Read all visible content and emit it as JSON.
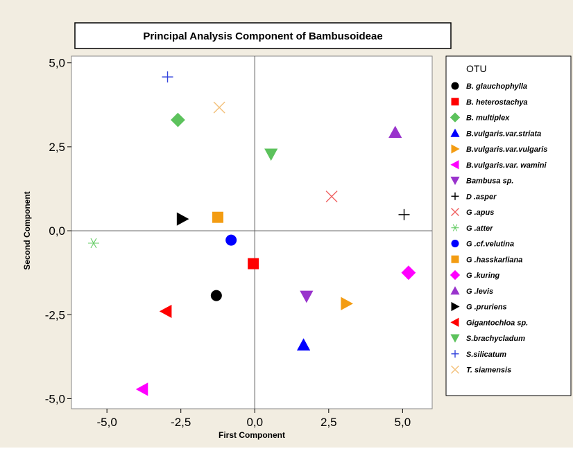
{
  "chart_data": {
    "type": "scatter",
    "title": "Principal Analysis Component of Bambusoideae",
    "xlabel": "First Component",
    "ylabel": "Second Component",
    "xlim": [
      -6.2,
      6.0
    ],
    "ylim": [
      -5.3,
      5.2
    ],
    "xticks": [
      -5.0,
      -2.5,
      0.0,
      2.5,
      5.0
    ],
    "yticks": [
      -5.0,
      -2.5,
      0.0,
      2.5,
      5.0
    ],
    "xtick_labels": [
      "-5,0",
      "-2,5",
      "0,0",
      "2,5",
      "5,0"
    ],
    "ytick_labels": [
      "-5,0",
      "-2,5",
      "0,0",
      "2,5",
      "5,0"
    ],
    "reference_lines": {
      "x": 0,
      "y": 0
    },
    "legend_title": "OTU",
    "legend_position": "right",
    "series": [
      {
        "name": "B. glauchophylla",
        "marker": "circle",
        "color": "#000000",
        "x": -1.3,
        "y": -1.93
      },
      {
        "name": "B. heterostachya",
        "marker": "square",
        "color": "#ff0000",
        "x": -0.05,
        "y": -0.98
      },
      {
        "name": "B. multiplex",
        "marker": "diamond",
        "color": "#5cc25c",
        "x": -2.6,
        "y": 3.3
      },
      {
        "name": "B.vulgaris.var.striata",
        "marker": "triangle-up",
        "color": "#0000ff",
        "x": 1.65,
        "y": -3.4
      },
      {
        "name": "B.vulgaris.var.vulgaris",
        "marker": "triangle-right",
        "color": "#f39c12",
        "x": 3.1,
        "y": -2.17
      },
      {
        "name": "B.vulgaris.var. wamini",
        "marker": "triangle-left",
        "color": "#ff00ff",
        "x": -3.8,
        "y": -4.72
      },
      {
        "name": "Bambusa sp.",
        "marker": "triangle-down",
        "color": "#9933cc",
        "x": 1.75,
        "y": -1.95
      },
      {
        "name": "D .asper",
        "marker": "plus",
        "color": "#000000",
        "x": 5.05,
        "y": 0.48
      },
      {
        "name": "G .apus",
        "marker": "x",
        "color": "#f06060",
        "x": 2.6,
        "y": 1.02
      },
      {
        "name": "G .atter",
        "marker": "asterisk",
        "color": "#66cc66",
        "x": -5.45,
        "y": -0.37
      },
      {
        "name": "G .cf.velutina",
        "marker": "circle",
        "color": "#0000ff",
        "x": -0.8,
        "y": -0.28
      },
      {
        "name": "G .hasskarliana",
        "marker": "square",
        "color": "#f39c12",
        "x": -1.25,
        "y": 0.4
      },
      {
        "name": "G .kuring",
        "marker": "diamond",
        "color": "#ff00ff",
        "x": 5.2,
        "y": -1.25
      },
      {
        "name": "G .levis",
        "marker": "triangle-up",
        "color": "#9933cc",
        "x": 4.75,
        "y": 2.93
      },
      {
        "name": "G .pruriens",
        "marker": "triangle-right",
        "color": "#000000",
        "x": -2.45,
        "y": 0.35
      },
      {
        "name": "Gigantochloa sp.",
        "marker": "triangle-left",
        "color": "#ff0000",
        "x": -3.0,
        "y": -2.4
      },
      {
        "name": "S.brachycladum",
        "marker": "triangle-down",
        "color": "#5cc25c",
        "x": 0.55,
        "y": 2.28
      },
      {
        "name": "S.silicatum",
        "marker": "plus",
        "color": "#3344dd",
        "x": -2.95,
        "y": 4.58
      },
      {
        "name": "T. siamensis",
        "marker": "x",
        "color": "#f3c07a",
        "x": -1.2,
        "y": 3.67
      }
    ]
  }
}
